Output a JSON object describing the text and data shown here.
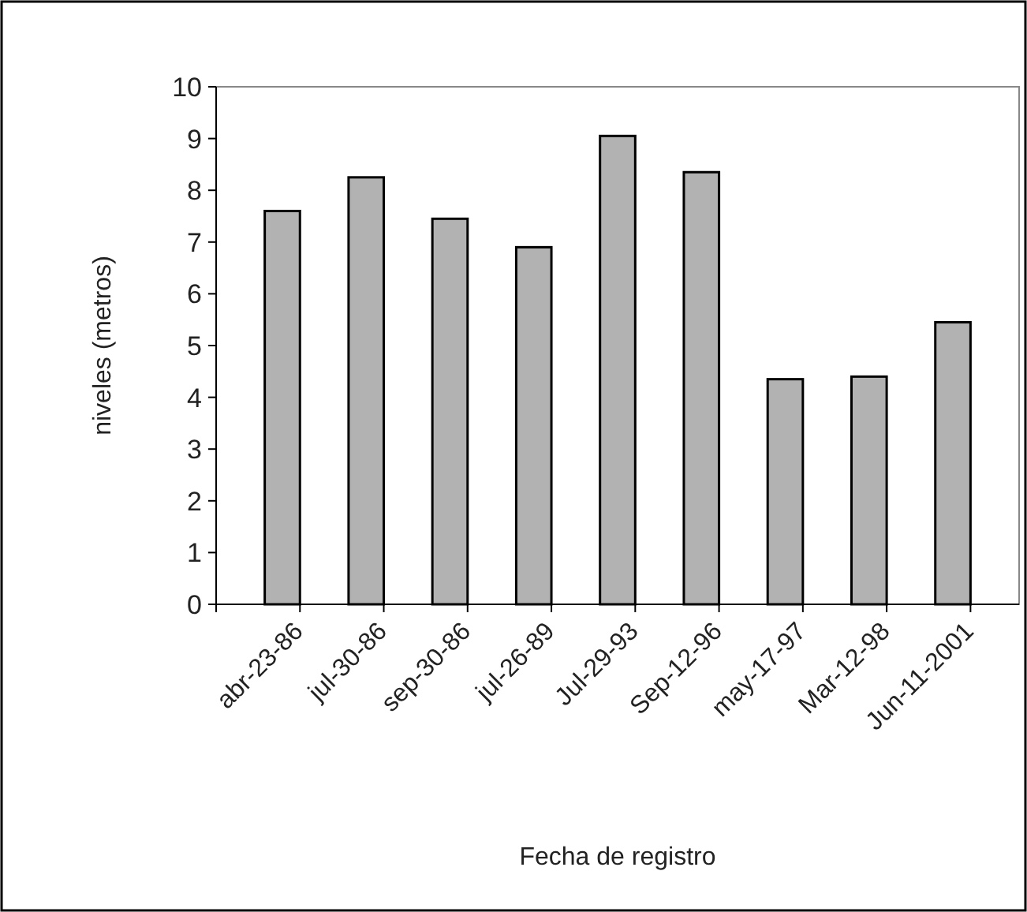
{
  "chart_data": {
    "type": "bar",
    "xlabel": "Fecha de registro",
    "ylabel": "niveles (metros)",
    "categories": [
      "abr-23-86",
      "jul-30-86",
      "sep-30-86",
      "jul-26-89",
      "Jul-29-93",
      "Sep-12-96",
      "may-17-97",
      "Mar-12-98",
      "Jun-11-2001"
    ],
    "values": [
      7.6,
      8.25,
      7.45,
      6.9,
      9.05,
      8.35,
      4.35,
      4.4,
      5.45
    ],
    "color": "#b2b2b2",
    "ylim": [
      0,
      10
    ],
    "yticks": [
      0,
      1,
      2,
      3,
      4,
      5,
      6,
      7,
      8,
      9,
      10
    ],
    "grid": false
  }
}
